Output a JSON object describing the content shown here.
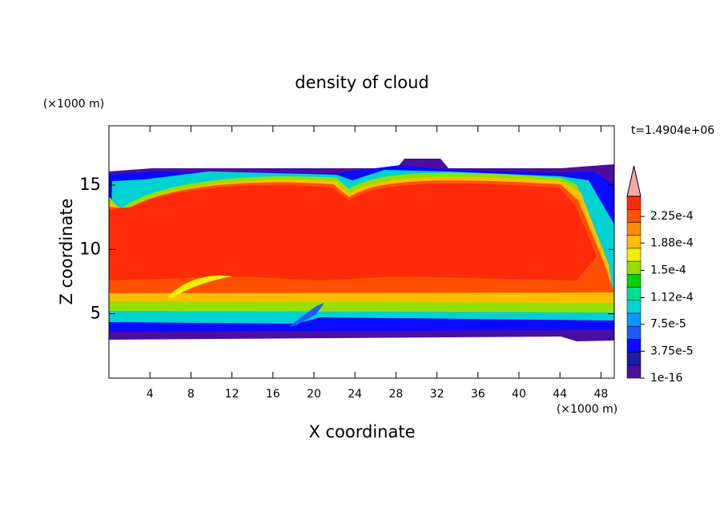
{
  "chart_data": {
    "type": "contour",
    "title": "density of cloud",
    "xlabel": "X coordinate",
    "ylabel": "Z coordinate",
    "xunit": "(×1000 m)",
    "yunit": "(×1000 m)",
    "annotation": "t=1.4904e+06",
    "xlim": [
      0,
      49.3
    ],
    "xticks": [
      4,
      8,
      12,
      16,
      20,
      24,
      28,
      32,
      36,
      40,
      44,
      48
    ],
    "ylim": [
      0,
      19.6
    ],
    "yticks": [
      5,
      10,
      15
    ],
    "colorbar": {
      "lim": [
        0,
        0.000253
      ],
      "ticks": [
        {
          "value": 1e-16,
          "label": "1e-16"
        },
        {
          "value": 3.75e-05,
          "label": "3.75e-5"
        },
        {
          "value": 7.5e-05,
          "label": "7.5e-5"
        },
        {
          "value": 0.000112,
          "label": "1.12e-4"
        },
        {
          "value": 0.00015,
          "label": "1.5e-4"
        },
        {
          "value": 0.000188,
          "label": "1.88e-4"
        },
        {
          "value": 0.000225,
          "label": "2.25e-4"
        }
      ],
      "colors": [
        "#4a0fa0",
        "#1c1ca8",
        "#0a0aff",
        "#1e5aff",
        "#0a96ff",
        "#00d2d2",
        "#00e08c",
        "#00d200",
        "#96e000",
        "#f0f000",
        "#ffbe00",
        "#ff8c00",
        "#ff5000",
        "#ff2a0a"
      ],
      "extend_color": "#f4a8a8"
    }
  }
}
